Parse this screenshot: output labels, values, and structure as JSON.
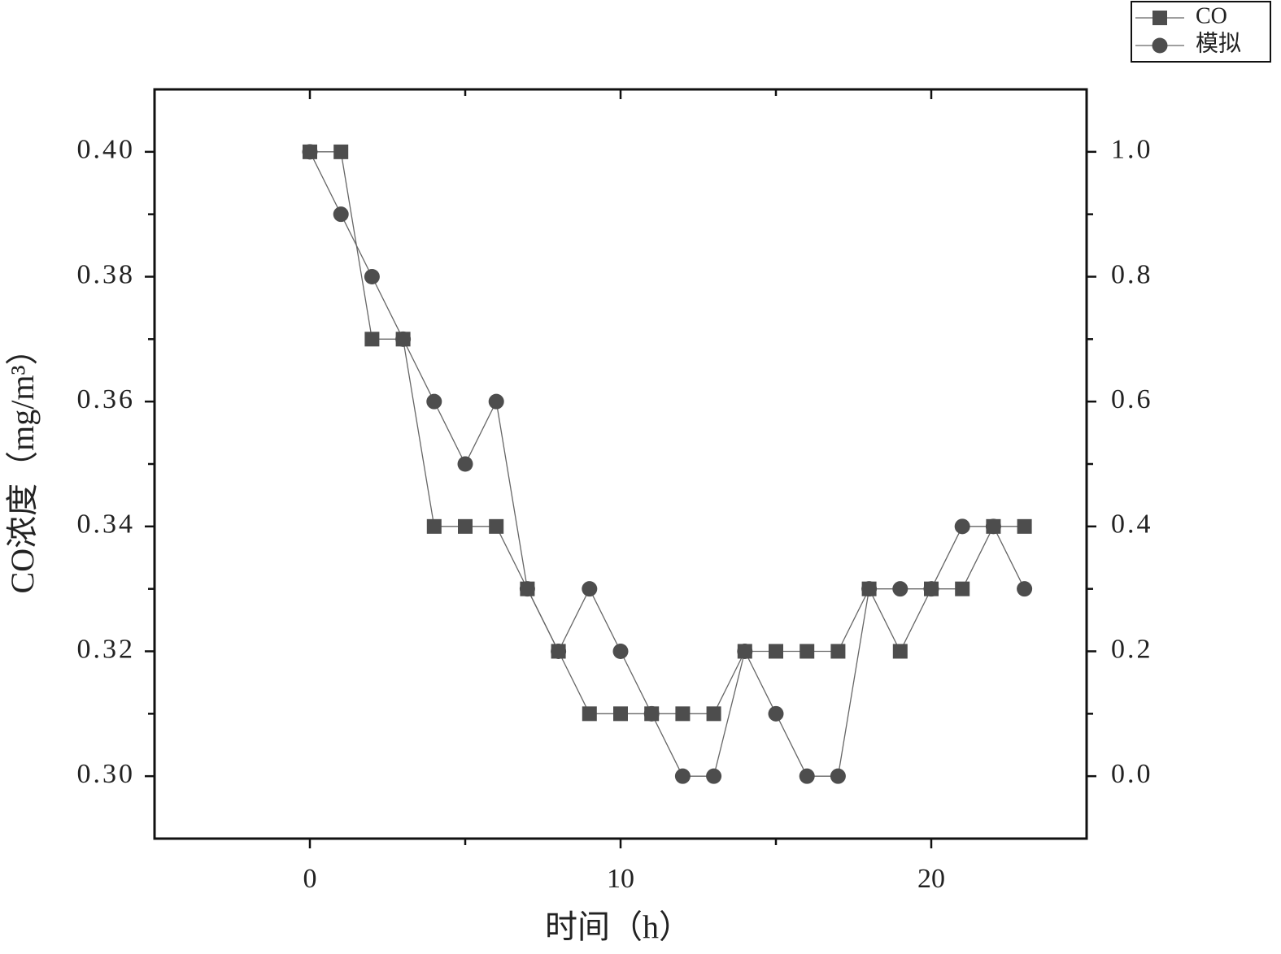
{
  "chart_data": {
    "type": "line",
    "xlabel": "时间（h）",
    "ylabel": "CO浓度（mg/m³）",
    "x": [
      0,
      1,
      2,
      3,
      4,
      5,
      6,
      7,
      8,
      9,
      10,
      11,
      12,
      13,
      14,
      15,
      16,
      17,
      18,
      19,
      20,
      21,
      22,
      23
    ],
    "series": [
      {
        "name": "CO",
        "color": "#4d4d4d",
        "marker": "square",
        "values": [
          0.4,
          0.4,
          0.37,
          0.37,
          0.34,
          0.34,
          0.34,
          0.33,
          0.32,
          0.31,
          0.31,
          0.31,
          0.31,
          0.31,
          0.32,
          0.32,
          0.32,
          0.32,
          0.33,
          0.32,
          0.33,
          0.33,
          0.34,
          0.34
        ]
      },
      {
        "name": "模拟",
        "color": "#4d4d4d",
        "marker": "circle",
        "axis": "y2",
        "values": [
          1.0,
          0.9,
          0.8,
          0.7,
          0.6,
          0.5,
          0.6,
          0.3,
          0.2,
          0.3,
          0.2,
          0.1,
          0.0,
          0.0,
          0.2,
          0.1,
          0.0,
          0.0,
          0.3,
          0.3,
          0.3,
          0.4,
          0.4,
          0.3
        ]
      }
    ],
    "xlim": [
      -5,
      25
    ],
    "xticks": [
      0,
      10,
      20
    ],
    "ylim": [
      0.29,
      0.41
    ],
    "yticks": [
      {
        "value": 0.3,
        "label": "0.30"
      },
      {
        "value": 0.32,
        "label": "0.32"
      },
      {
        "value": 0.34,
        "label": "0.34"
      },
      {
        "value": 0.36,
        "label": "0.36"
      },
      {
        "value": 0.38,
        "label": "0.38"
      },
      {
        "value": 0.4,
        "label": "0.40"
      }
    ],
    "y2lim": [
      -0.1,
      1.1
    ],
    "y2ticks": [
      {
        "value": 0.0,
        "label": "0.0"
      },
      {
        "value": 0.2,
        "label": "0.2"
      },
      {
        "value": 0.4,
        "label": "0.4"
      },
      {
        "value": 0.6,
        "label": "0.6"
      },
      {
        "value": 0.8,
        "label": "0.8"
      },
      {
        "value": 1.0,
        "label": "1.0"
      }
    ],
    "grid": false,
    "legend": "top-right"
  }
}
